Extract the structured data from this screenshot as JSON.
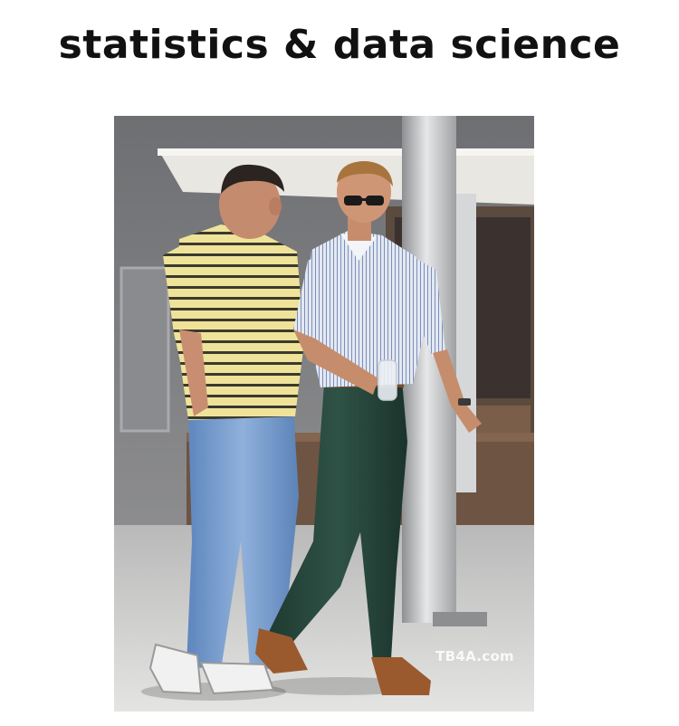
{
  "meme": {
    "caption": "statistics & data science",
    "watermark": "TB4A.com"
  },
  "colors": {
    "background": "#ffffff",
    "caption_text": "#111111"
  }
}
